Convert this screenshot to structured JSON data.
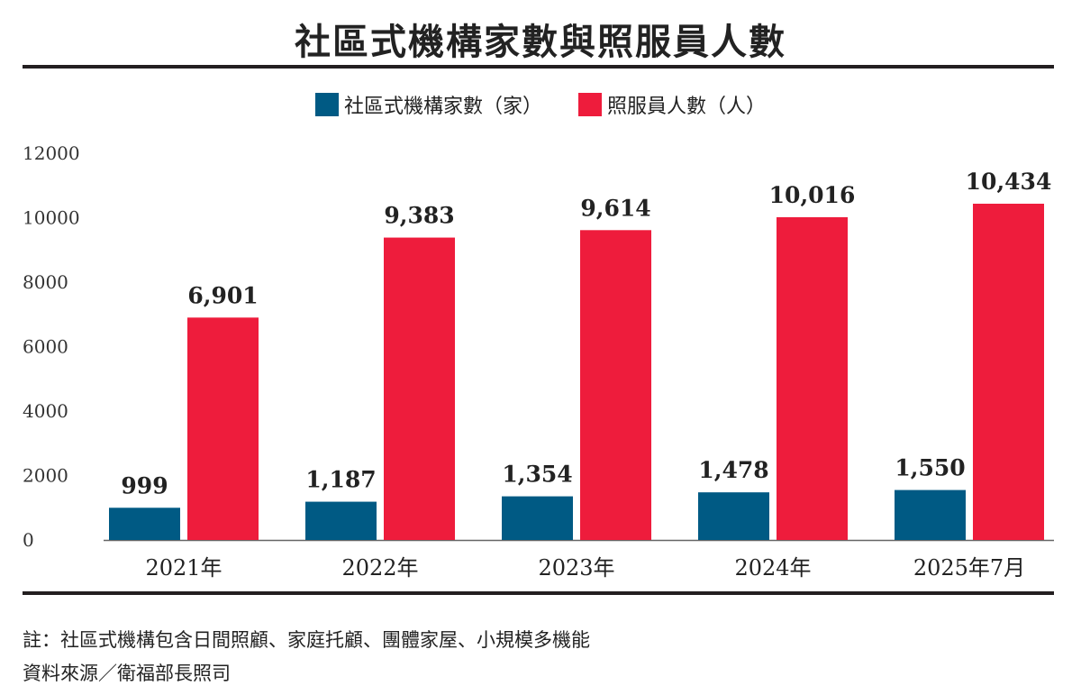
{
  "chart_data": {
    "type": "bar",
    "title": "社區式機構家數與照服員人數",
    "categories": [
      "2021年",
      "2022年",
      "2023年",
      "2024年",
      "2025年7月"
    ],
    "series": [
      {
        "name": "社區式機構家數（家）",
        "color": "#005a84",
        "values": [
          999,
          1187,
          1354,
          1478,
          1550
        ],
        "labels": [
          "999",
          "1,187",
          "1,354",
          "1,478",
          "1,550"
        ]
      },
      {
        "name": "照服員人數（人）",
        "color": "#ee1c3c",
        "values": [
          6901,
          9383,
          9614,
          10016,
          10434
        ],
        "labels": [
          "6,901",
          "9,383",
          "9,614",
          "10,016",
          "10,434"
        ]
      }
    ],
    "ylim": [
      0,
      12000
    ],
    "yticks": [
      "0",
      "2000",
      "4000",
      "6000",
      "8000",
      "10000",
      "12000"
    ],
    "grid": false,
    "legend": "top-center",
    "xlabel": "",
    "ylabel": ""
  },
  "notes": {
    "note": "註：社區式機構包含日間照顧、家庭托顧、團體家屋、小規模多機能",
    "source": "資料來源／衛福部長照司"
  }
}
